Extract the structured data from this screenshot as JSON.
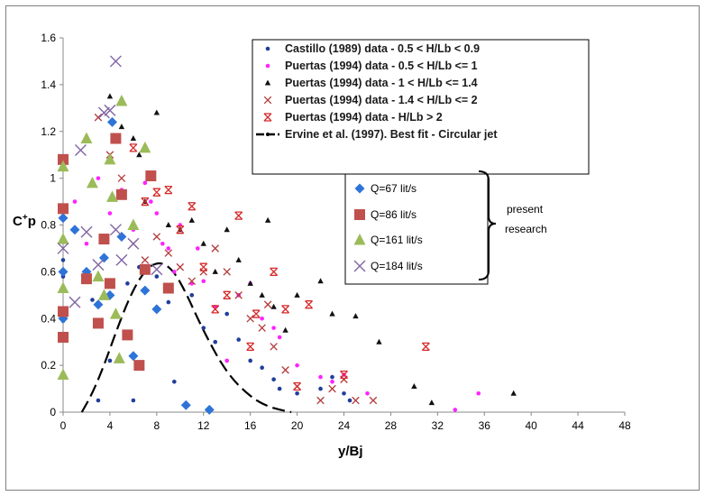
{
  "chart_data": {
    "type": "scatter",
    "title": "",
    "xlabel": "y/Bj",
    "ylabel_main": "C",
    "ylabel_sup": "+",
    "ylabel_sub": "p",
    "xlim": [
      0,
      48
    ],
    "ylim": [
      0,
      1.6
    ],
    "xticks": [
      "0",
      "4",
      "8",
      "12",
      "16",
      "20",
      "24",
      "28",
      "32",
      "36",
      "40",
      "44",
      "48"
    ],
    "yticks": [
      "0",
      "0.2",
      "0.4",
      "0.6",
      "0.8",
      "1",
      "1.2",
      "1.4",
      "1.6"
    ],
    "grid": false,
    "legend_main_position": "top-right",
    "series": [
      {
        "name": "Castillo (1989) data  - 0.5 < H/Lb < 0.9",
        "marker": "dot",
        "color": "#1f3f9a",
        "points": [
          [
            0,
            0.83
          ],
          [
            0,
            0.65
          ],
          [
            0,
            0.58
          ],
          [
            0,
            0.52
          ],
          [
            0,
            0.42
          ],
          [
            0,
            0.39
          ],
          [
            1,
            0.78
          ],
          [
            2,
            0.6
          ],
          [
            2.5,
            0.48
          ],
          [
            3,
            0.05
          ],
          [
            4,
            0.22
          ],
          [
            5,
            0.75
          ],
          [
            5.5,
            0.55
          ],
          [
            6,
            0.05
          ],
          [
            6.5,
            0.62
          ],
          [
            8,
            0.58
          ],
          [
            9,
            0.47
          ],
          [
            9.5,
            0.13
          ],
          [
            11,
            0.5
          ],
          [
            12,
            0.36
          ],
          [
            13,
            0.3
          ],
          [
            14,
            0.42
          ],
          [
            15,
            0.31
          ],
          [
            16,
            0.22
          ],
          [
            17,
            0.19
          ],
          [
            18,
            0.14
          ],
          [
            18.5,
            0.1
          ],
          [
            20,
            0.08
          ],
          [
            22,
            0.1
          ],
          [
            23,
            0.15
          ],
          [
            24,
            0.08
          ],
          [
            24.5,
            0.05
          ]
        ]
      },
      {
        "name": "Puertas (1994) data  - 0.5 < H/Lb <= 1",
        "marker": "dot",
        "color": "#ff22ff",
        "points": [
          [
            1,
            0.9
          ],
          [
            2,
            0.72
          ],
          [
            3,
            1.0
          ],
          [
            4,
            0.85
          ],
          [
            5,
            0.95
          ],
          [
            6,
            0.78
          ],
          [
            7,
            0.98
          ],
          [
            7.5,
            0.9
          ],
          [
            8,
            0.85
          ],
          [
            8.5,
            0.72
          ],
          [
            9,
            0.7
          ],
          [
            9.5,
            0.6
          ],
          [
            10,
            0.8
          ],
          [
            11,
            0.55
          ],
          [
            11.5,
            0.7
          ],
          [
            12,
            0.56
          ],
          [
            13,
            0.45
          ],
          [
            14,
            0.22
          ],
          [
            15,
            0.5
          ],
          [
            16,
            0.55
          ],
          [
            17,
            0.4
          ],
          [
            18,
            0.36
          ],
          [
            18.5,
            0.32
          ],
          [
            20,
            0.2
          ],
          [
            22,
            0.15
          ],
          [
            23,
            0.13
          ],
          [
            24,
            0.16
          ],
          [
            26,
            0.08
          ],
          [
            33.5,
            0.01
          ],
          [
            35.5,
            0.08
          ]
        ]
      },
      {
        "name": "Puertas (1994) data  - 1 < H/Lb <= 1.4",
        "marker": "triangle",
        "color": "#111111",
        "points": [
          [
            4,
            1.35
          ],
          [
            5,
            1.22
          ],
          [
            6,
            1.17
          ],
          [
            6.5,
            1.1
          ],
          [
            7,
            0.9
          ],
          [
            8,
            1.28
          ],
          [
            9,
            0.8
          ],
          [
            10,
            0.78
          ],
          [
            11,
            0.82
          ],
          [
            12,
            0.72
          ],
          [
            13,
            0.6
          ],
          [
            14,
            0.78
          ],
          [
            15,
            0.65
          ],
          [
            16,
            0.55
          ],
          [
            17,
            0.5
          ],
          [
            17.5,
            0.82
          ],
          [
            18,
            0.45
          ],
          [
            19,
            0.35
          ],
          [
            20,
            0.5
          ],
          [
            22,
            0.56
          ],
          [
            23,
            0.42
          ],
          [
            25,
            0.41
          ],
          [
            27,
            0.3
          ],
          [
            30,
            0.11
          ],
          [
            31.5,
            0.04
          ],
          [
            38.5,
            0.08
          ]
        ]
      },
      {
        "name": "Puertas (1994) data  - 1.4 < H/Lb <= 2",
        "marker": "x",
        "color": "#b33a3a",
        "points": [
          [
            3,
            1.26
          ],
          [
            4,
            1.1
          ],
          [
            5,
            1.0
          ],
          [
            6,
            0.72
          ],
          [
            7,
            0.65
          ],
          [
            8,
            0.75
          ],
          [
            9,
            0.68
          ],
          [
            10,
            0.62
          ],
          [
            11,
            0.56
          ],
          [
            12,
            0.6
          ],
          [
            13,
            0.7
          ],
          [
            14,
            0.6
          ],
          [
            15,
            0.5
          ],
          [
            16,
            0.4
          ],
          [
            17,
            0.36
          ],
          [
            17.5,
            0.46
          ],
          [
            18,
            0.28
          ],
          [
            19,
            0.18
          ],
          [
            20,
            0.11
          ],
          [
            22,
            0.05
          ],
          [
            23,
            0.1
          ],
          [
            24,
            0.14
          ],
          [
            25,
            0.05
          ],
          [
            26.5,
            0.05
          ]
        ]
      },
      {
        "name": "Puertas (1994) data  - H/Lb > 2",
        "marker": "star",
        "color": "#d62a2a",
        "points": [
          [
            6,
            1.13
          ],
          [
            7,
            0.9
          ],
          [
            8,
            0.94
          ],
          [
            9,
            0.95
          ],
          [
            10,
            0.78
          ],
          [
            11,
            0.88
          ],
          [
            12,
            0.62
          ],
          [
            13,
            0.44
          ],
          [
            14,
            0.5
          ],
          [
            15,
            0.84
          ],
          [
            16,
            0.28
          ],
          [
            16.5,
            0.42
          ],
          [
            18,
            0.6
          ],
          [
            19,
            0.44
          ],
          [
            20,
            0.11
          ],
          [
            21,
            0.46
          ],
          [
            24,
            0.16
          ],
          [
            31,
            0.28
          ]
        ]
      },
      {
        "name": "Q=67 lit/s",
        "marker": "diamond",
        "color": "#2e74d8",
        "points": [
          [
            0,
            0.83
          ],
          [
            0,
            0.6
          ],
          [
            0,
            0.4
          ],
          [
            1,
            0.78
          ],
          [
            2,
            0.6
          ],
          [
            3,
            0.46
          ],
          [
            3.5,
            0.66
          ],
          [
            4,
            0.5
          ],
          [
            4.2,
            1.24
          ],
          [
            5,
            0.75
          ],
          [
            6,
            0.24
          ],
          [
            7,
            0.52
          ],
          [
            8,
            0.44
          ],
          [
            10.5,
            0.03
          ],
          [
            12.5,
            0.01
          ]
        ]
      },
      {
        "name": "Q=86 lit/s",
        "marker": "square",
        "color": "#c0504d",
        "points": [
          [
            0,
            1.08
          ],
          [
            0,
            0.87
          ],
          [
            0,
            0.43
          ],
          [
            0,
            0.32
          ],
          [
            2,
            0.57
          ],
          [
            3,
            0.38
          ],
          [
            3.5,
            0.74
          ],
          [
            4,
            0.55
          ],
          [
            4.5,
            1.17
          ],
          [
            5,
            0.93
          ],
          [
            5.5,
            0.33
          ],
          [
            6.5,
            0.2
          ],
          [
            7,
            0.61
          ],
          [
            7.5,
            1.01
          ],
          [
            9,
            0.53
          ]
        ]
      },
      {
        "name": "Q=161 lit/s",
        "marker": "triangle-big",
        "color": "#9bbb59",
        "points": [
          [
            0,
            1.05
          ],
          [
            0,
            0.74
          ],
          [
            0,
            0.53
          ],
          [
            0,
            0.16
          ],
          [
            2,
            1.17
          ],
          [
            2.5,
            0.98
          ],
          [
            3,
            0.58
          ],
          [
            3.5,
            0.5
          ],
          [
            4,
            1.08
          ],
          [
            4.2,
            0.92
          ],
          [
            4.5,
            0.42
          ],
          [
            4.8,
            0.23
          ],
          [
            5,
            1.33
          ],
          [
            6,
            0.8
          ],
          [
            7,
            1.13
          ]
        ]
      },
      {
        "name": "Q=184 lit/s",
        "marker": "x-big",
        "color": "#8064a2",
        "points": [
          [
            0,
            0.7
          ],
          [
            1,
            0.47
          ],
          [
            1.5,
            1.12
          ],
          [
            2,
            0.77
          ],
          [
            3,
            0.63
          ],
          [
            3.5,
            1.28
          ],
          [
            4,
            1.29
          ],
          [
            4.5,
            1.5
          ],
          [
            4.5,
            0.78
          ],
          [
            5,
            0.65
          ],
          [
            6,
            0.72
          ],
          [
            8,
            0.61
          ]
        ]
      }
    ],
    "best_fit": {
      "name": "Ervine et al. (1997). Best fit - Circular jet",
      "color": "#000000",
      "points": [
        [
          1.6,
          0
        ],
        [
          2.5,
          0.08
        ],
        [
          3.5,
          0.2
        ],
        [
          4.5,
          0.34
        ],
        [
          5.5,
          0.47
        ],
        [
          6.5,
          0.57
        ],
        [
          7.5,
          0.63
        ],
        [
          8.5,
          0.64
        ],
        [
          9.5,
          0.6
        ],
        [
          10.5,
          0.51
        ],
        [
          11.5,
          0.4
        ],
        [
          12.5,
          0.3
        ],
        [
          13.5,
          0.21
        ],
        [
          14.5,
          0.14
        ],
        [
          15.5,
          0.09
        ],
        [
          16.5,
          0.05
        ],
        [
          17.5,
          0.025
        ],
        [
          18.5,
          0.01
        ],
        [
          19.5,
          0
        ]
      ]
    },
    "present_label_1": "present",
    "present_label_2": "research"
  }
}
